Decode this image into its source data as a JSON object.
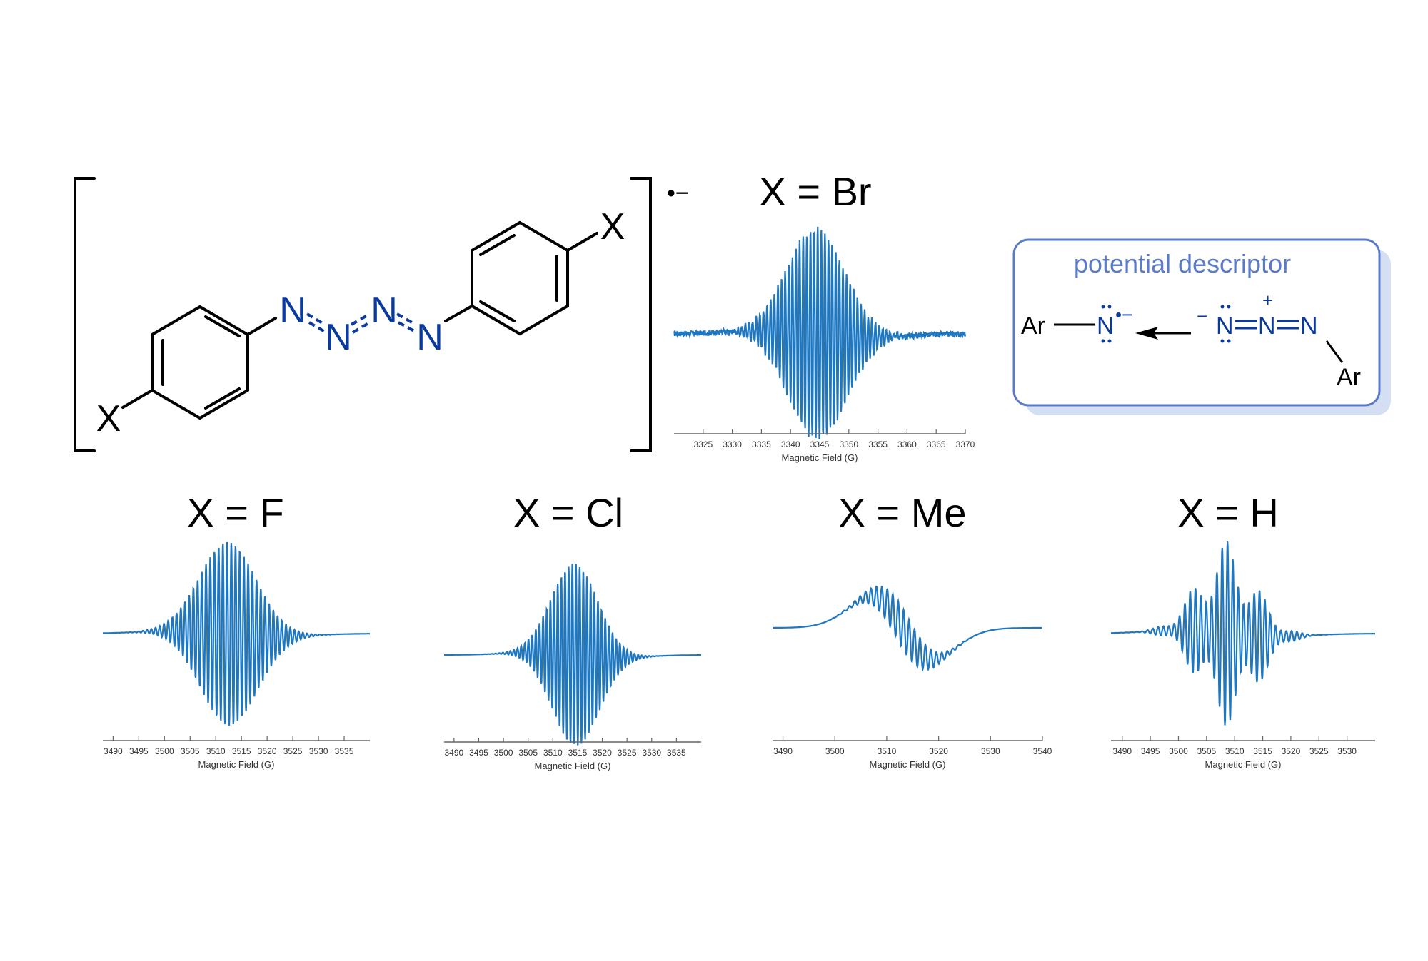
{
  "structure": {
    "atoms": {
      "X_left": "X",
      "X_right": "X",
      "N1": "N",
      "N2": "N",
      "N3": "N",
      "N4": "N"
    },
    "charge": "•−",
    "azo_color": "#0a3a9c"
  },
  "descriptor_box": {
    "title": "potential descriptor",
    "ar_left": "Ar",
    "n_radical": "N",
    "radical_charge": "•−",
    "minus": "−",
    "n_a": "N",
    "n_b": "N",
    "n_c": "N",
    "plus": "+",
    "ar_right": "Ar",
    "title_color": "#5b7bc8",
    "border_color": "#5b7bc8"
  },
  "colors": {
    "trace": "#1f77c0",
    "axis": "#666666",
    "label": "#333333"
  },
  "chart_data": [
    {
      "type": "line",
      "title": "X = Br",
      "xlabel": "Magnetic Field (G)",
      "xlim": [
        3320,
        3370
      ],
      "xticks": [
        3325,
        3330,
        3335,
        3340,
        3345,
        3350,
        3355,
        3360,
        3365,
        3370
      ],
      "series": [
        {
          "center": 3344.5,
          "width": 9.0,
          "lines": 52,
          "spacing": 0.62,
          "skew": 0.0,
          "baseline_slope": 0.0,
          "noise": 0.05,
          "peak": 1.0
        }
      ]
    },
    {
      "type": "line",
      "title": "X = F",
      "xlabel": "Magnetic Field (G)",
      "xlim": [
        3488,
        3540
      ],
      "xticks": [
        3490,
        3495,
        3500,
        3505,
        3510,
        3515,
        3520,
        3525,
        3530,
        3535
      ],
      "series": [
        {
          "center": 3512.0,
          "width": 10.0,
          "lines": 46,
          "spacing": 0.82,
          "skew": 0.25,
          "baseline_slope": 0.0,
          "noise": 0.0,
          "peak": 1.0
        }
      ]
    },
    {
      "type": "line",
      "title": "X = Cl",
      "xlabel": "Magnetic Field (G)",
      "xlim": [
        3488,
        3540
      ],
      "xticks": [
        3490,
        3495,
        3500,
        3505,
        3510,
        3515,
        3520,
        3525,
        3530,
        3535
      ],
      "series": [
        {
          "center": 3514.5,
          "width": 8.5,
          "lines": 40,
          "spacing": 0.74,
          "skew": 0.0,
          "baseline_slope": 0.0,
          "noise": 0.0,
          "peak": 1.0
        }
      ]
    },
    {
      "type": "line",
      "title": "X = Me",
      "xlabel": "Magnetic Field (G)",
      "xlim": [
        3488,
        3540
      ],
      "xticks": [
        3490,
        3500,
        3510,
        3520,
        3530,
        3540
      ],
      "series": [
        {
          "center": 3513.0,
          "width": 8.0,
          "lines": 30,
          "spacing": 1.05,
          "skew": 0.0,
          "baseline_slope": 0.0,
          "noise": 0.0,
          "peak": 1.0,
          "derivative": true
        }
      ]
    },
    {
      "type": "line",
      "title": "X = H",
      "xlabel": "Magnetic Field (G)",
      "xlim": [
        3488,
        3535
      ],
      "xticks": [
        3490,
        3495,
        3500,
        3505,
        3510,
        3515,
        3520,
        3525,
        3530
      ],
      "series": [
        {
          "center": 3508.5,
          "width": 9.0,
          "lines": 38,
          "spacing": 0.95,
          "skew": 0.1,
          "baseline_slope": 0.0,
          "noise": 0.0,
          "peak": 1.0,
          "beat": true
        }
      ]
    }
  ]
}
